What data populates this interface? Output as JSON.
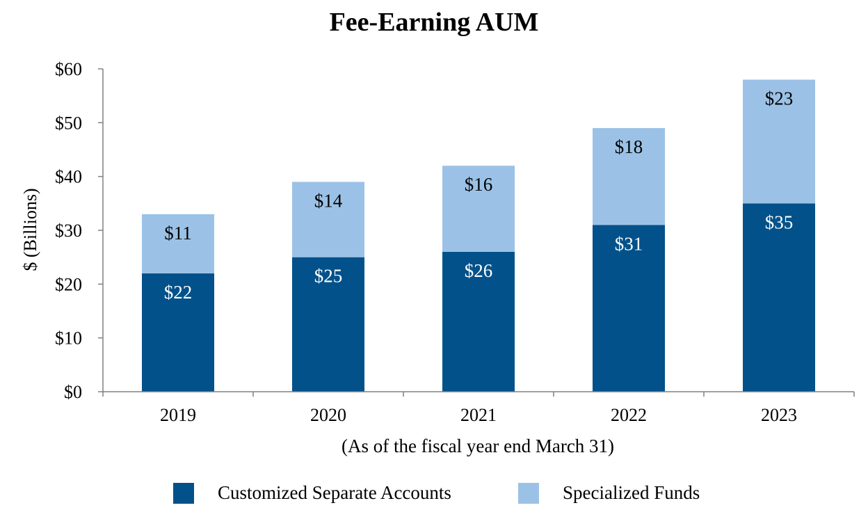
{
  "chart_data": {
    "type": "bar",
    "stacked": true,
    "title": "Fee-Earning AUM",
    "xlabel": "(As of the fiscal year end March 31)",
    "ylabel": "$ (Billions)",
    "ylim": [
      0,
      60
    ],
    "yticks": [
      0,
      10,
      20,
      30,
      40,
      50,
      60
    ],
    "ytick_labels": [
      "$0",
      "$10",
      "$20",
      "$30",
      "$40",
      "$50",
      "$60"
    ],
    "categories": [
      "2019",
      "2020",
      "2021",
      "2022",
      "2023"
    ],
    "series": [
      {
        "name": "Customized Separate Accounts",
        "color": "#03518a",
        "label_color": "#ffffff",
        "values": [
          22,
          25,
          26,
          31,
          35
        ],
        "labels": [
          "$22",
          "$25",
          "$26",
          "$31",
          "$35"
        ]
      },
      {
        "name": "Specialized Funds",
        "color": "#9bc2e6",
        "label_color": "#000000",
        "values": [
          11,
          14,
          16,
          18,
          23
        ],
        "labels": [
          "$11",
          "$14",
          "$16",
          "$18",
          "$23"
        ]
      }
    ],
    "legend_position": "bottom-center",
    "grid": false
  }
}
